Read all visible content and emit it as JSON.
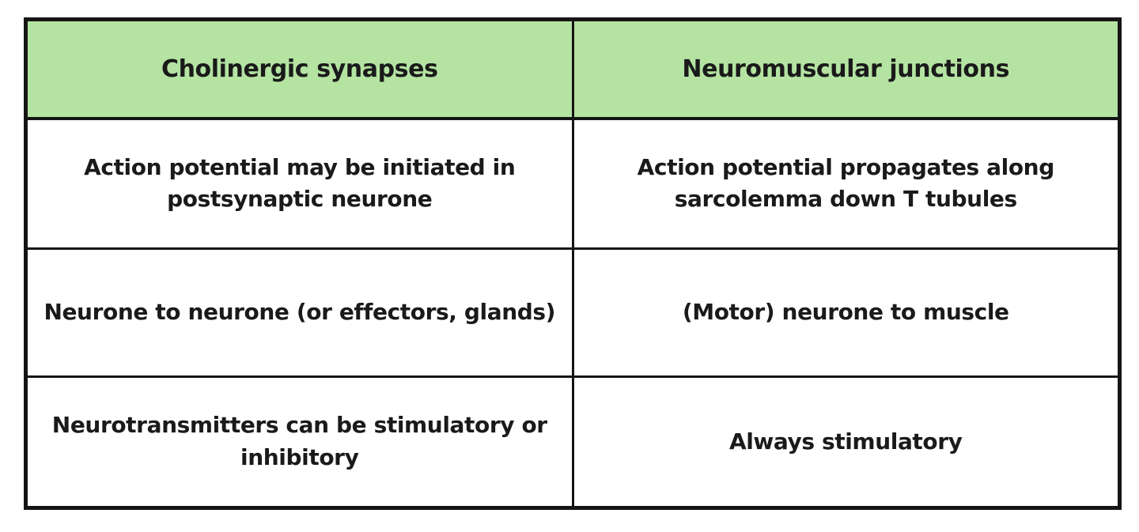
{
  "colors": {
    "header_bg": "#b4e3a2",
    "border": "#151515",
    "text": "#1a1a1a",
    "cell_bg": "#ffffff",
    "page_bg": "#ffffff"
  },
  "table": {
    "headers": [
      {
        "label": "Cholinergic synapses"
      },
      {
        "label": "Neuromuscular junctions"
      }
    ],
    "rows": [
      {
        "left": "Action potential may be initiated in postsynaptic neurone",
        "right": "Action potential propagates along sarcolemma down T tubules"
      },
      {
        "left": "Neurone to neurone (or effectors, glands)",
        "right": "(Motor) neurone to muscle"
      },
      {
        "left": "Neurotransmitters can be stimulatory or inhibitory",
        "right": "Always stimulatory"
      }
    ]
  }
}
